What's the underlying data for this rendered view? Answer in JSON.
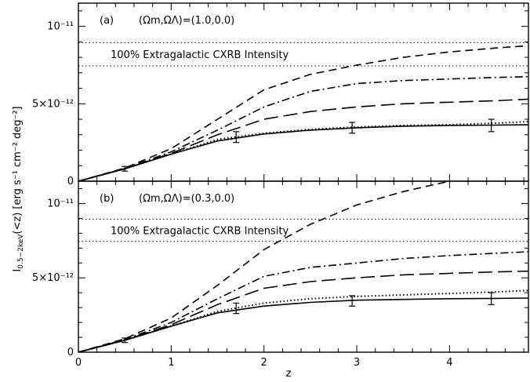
{
  "figure": {
    "shared_ylabel": "I0.5−2keV(<z) [erg s⁻¹ cm⁻² deg⁻²]",
    "ylabel_main": "I",
    "ylabel_sub": "0.5−2keV",
    "ylabel_rest": "(<z) [erg s⁻¹ cm⁻² deg⁻²]",
    "xlabel": "z",
    "colors": {
      "ink": "#000000",
      "background": "#ffffff"
    }
  },
  "chart_data": [
    {
      "type": "line",
      "panel_label": "(a)",
      "params_text": "(Ωm,ΩΛ)=(1.0,0.0)",
      "annotation": "100% Extragalactic CXRB Intensity",
      "xlim": [
        0,
        4.85
      ],
      "ylim": [
        0,
        1.15e-11
      ],
      "xticks": [
        0,
        1,
        2,
        3,
        4
      ],
      "xtick_labels": [
        "0",
        "1",
        "2",
        "3",
        "4"
      ],
      "yticks": [
        0,
        5e-12,
        1e-11
      ],
      "ytick_labels": [
        "0",
        "5×10⁻¹²",
        "10⁻¹¹"
      ],
      "hlines": [
        8.95e-12,
        7.45e-12
      ],
      "series": [
        {
          "style": "short-dash",
          "x": [
            0,
            0.5,
            1,
            1.5,
            2,
            2.5,
            3,
            3.5,
            4,
            4.5,
            4.85
          ],
          "y": [
            0,
            8.5e-13,
            2.1e-12,
            4e-12,
            5.9e-12,
            6.9e-12,
            7.5e-12,
            8e-12,
            8.35e-12,
            8.6e-12,
            8.75e-12
          ]
        },
        {
          "style": "dash-dot",
          "x": [
            0,
            0.5,
            1,
            1.5,
            2,
            2.5,
            3,
            3.5,
            4,
            4.5,
            4.85
          ],
          "y": [
            0,
            8.2e-13,
            1.9e-12,
            3.3e-12,
            4.8e-12,
            5.8e-12,
            6.3e-12,
            6.5e-12,
            6.6e-12,
            6.7e-12,
            6.75e-12
          ]
        },
        {
          "style": "long-dash",
          "x": [
            0,
            0.5,
            1,
            1.5,
            2,
            2.5,
            3,
            3.5,
            4,
            4.5,
            4.85
          ],
          "y": [
            0,
            8e-13,
            1.8e-12,
            3e-12,
            4e-12,
            4.5e-12,
            4.8e-12,
            5e-12,
            5.1e-12,
            5.2e-12,
            5.3e-12
          ]
        },
        {
          "style": "dotted",
          "x": [
            0,
            0.5,
            1,
            1.5,
            2,
            2.5,
            3,
            3.5,
            4,
            4.5,
            4.85
          ],
          "y": [
            0,
            8e-13,
            1.75e-12,
            2.7e-12,
            3.1e-12,
            3.35e-12,
            3.5e-12,
            3.6e-12,
            3.65e-12,
            3.75e-12,
            3.85e-12
          ]
        },
        {
          "style": "solid",
          "x": [
            0,
            0.5,
            1,
            1.5,
            2,
            2.5,
            3,
            3.5,
            4,
            4.5,
            4.85
          ],
          "y": [
            0,
            8e-13,
            1.75e-12,
            2.6e-12,
            3.05e-12,
            3.3e-12,
            3.45e-12,
            3.55e-12,
            3.6e-12,
            3.62e-12,
            3.64e-12
          ]
        }
      ],
      "error_bars": [
        {
          "x": 0.5,
          "y": 8e-13,
          "err": 1.5e-13
        },
        {
          "x": 1.7,
          "y": 2.85e-12,
          "err": 3.5e-13
        },
        {
          "x": 2.95,
          "y": 3.45e-12,
          "err": 3.5e-13
        },
        {
          "x": 4.45,
          "y": 3.6e-12,
          "err": 4e-13
        }
      ]
    },
    {
      "type": "line",
      "panel_label": "(b)",
      "params_text": "(Ωm,ΩΛ)=(0.3,0.0)",
      "annotation": "100% Extragalactic CXRB Intensity",
      "xlim": [
        0,
        4.85
      ],
      "ylim": [
        0,
        1.15e-11
      ],
      "xticks": [
        0,
        1,
        2,
        3,
        4
      ],
      "xtick_labels": [
        "0",
        "1",
        "2",
        "3",
        "4"
      ],
      "yticks": [
        0,
        5e-12,
        1e-11
      ],
      "ytick_labels": [
        "0",
        "5×10⁻¹²",
        "10⁻¹¹"
      ],
      "hlines": [
        8.95e-12,
        7.45e-12
      ],
      "series": [
        {
          "style": "short-dash",
          "x": [
            0,
            0.5,
            1,
            1.5,
            2,
            2.5,
            3,
            3.5,
            4
          ],
          "y": [
            0,
            9e-13,
            2.3e-12,
            4.5e-12,
            6.9e-12,
            8.6e-12,
            9.9e-12,
            1.08e-11,
            1.15e-11
          ]
        },
        {
          "style": "dash-dot",
          "x": [
            0,
            0.5,
            1,
            1.5,
            2,
            2.5,
            3,
            3.5,
            4,
            4.5,
            4.85
          ],
          "y": [
            0,
            8.5e-13,
            2e-12,
            3.6e-12,
            5.1e-12,
            5.7e-12,
            6e-12,
            6.3e-12,
            6.5e-12,
            6.65e-12,
            6.75e-12
          ]
        },
        {
          "style": "long-dash",
          "x": [
            0,
            0.5,
            1,
            1.5,
            2,
            2.5,
            3,
            3.5,
            4,
            4.5,
            4.85
          ],
          "y": [
            0,
            8e-13,
            1.85e-12,
            3.2e-12,
            4.3e-12,
            4.75e-12,
            5e-12,
            5.2e-12,
            5.3e-12,
            5.4e-12,
            5.45e-12
          ]
        },
        {
          "style": "dotted",
          "x": [
            0,
            0.5,
            1,
            1.5,
            2,
            2.5,
            3,
            3.5,
            4,
            4.5,
            4.85
          ],
          "y": [
            0,
            8e-13,
            1.75e-12,
            2.75e-12,
            3.3e-12,
            3.6e-12,
            3.75e-12,
            3.85e-12,
            3.95e-12,
            4.05e-12,
            4.15e-12
          ]
        },
        {
          "style": "solid",
          "x": [
            0,
            0.5,
            1,
            1.5,
            2,
            2.5,
            3,
            3.5,
            4,
            4.5,
            4.85
          ],
          "y": [
            0,
            8e-13,
            1.75e-12,
            2.65e-12,
            3.1e-12,
            3.35e-12,
            3.5e-12,
            3.55e-12,
            3.6e-12,
            3.62e-12,
            3.64e-12
          ]
        }
      ],
      "error_bars": [
        {
          "x": 0.5,
          "y": 8e-13,
          "err": 1.5e-13
        },
        {
          "x": 1.7,
          "y": 2.95e-12,
          "err": 3.5e-13
        },
        {
          "x": 2.95,
          "y": 3.45e-12,
          "err": 3.5e-13
        },
        {
          "x": 4.45,
          "y": 3.6e-12,
          "err": 4e-13
        }
      ]
    }
  ]
}
